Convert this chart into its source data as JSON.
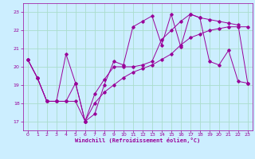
{
  "xlabel": "Windchill (Refroidissement éolien,°C)",
  "background_color": "#cceeff",
  "grid_color": "#aaddcc",
  "line_color": "#990099",
  "xlim": [
    -0.5,
    23.5
  ],
  "ylim": [
    16.5,
    23.5
  ],
  "xticks": [
    0,
    1,
    2,
    3,
    4,
    5,
    6,
    7,
    8,
    9,
    10,
    11,
    12,
    13,
    14,
    15,
    16,
    17,
    18,
    19,
    20,
    21,
    22,
    23
  ],
  "yticks": [
    17,
    18,
    19,
    20,
    21,
    22,
    23
  ],
  "series1": [
    20.4,
    19.4,
    18.1,
    18.1,
    20.7,
    19.1,
    17.0,
    17.4,
    19.0,
    20.3,
    20.1,
    22.2,
    22.5,
    22.8,
    21.2,
    22.9,
    21.1,
    22.9,
    22.7,
    20.3,
    20.1,
    20.9,
    19.2,
    19.1
  ],
  "series2": [
    20.4,
    19.4,
    18.1,
    18.1,
    18.1,
    18.1,
    17.0,
    18.0,
    18.6,
    19.0,
    19.4,
    19.7,
    19.9,
    20.1,
    20.4,
    20.7,
    21.2,
    21.6,
    21.8,
    22.0,
    22.1,
    22.2,
    22.2,
    22.2
  ],
  "series3": [
    20.4,
    19.4,
    18.1,
    18.1,
    18.1,
    19.1,
    17.0,
    18.5,
    19.3,
    20.0,
    20.0,
    20.0,
    20.1,
    20.3,
    21.5,
    22.0,
    22.5,
    22.9,
    22.7,
    22.6,
    22.5,
    22.4,
    22.3,
    19.1
  ]
}
